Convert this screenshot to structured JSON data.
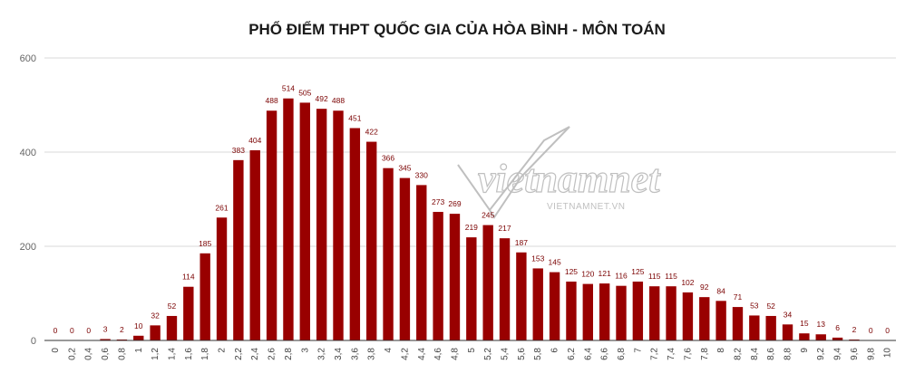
{
  "chart_data": {
    "type": "bar",
    "title": "PHỔ ĐIỂM THPT QUỐC GIA CỦA HÒA BÌNH - MÔN TOÁN",
    "xlabel": "",
    "ylabel": "",
    "ylim": [
      0,
      600
    ],
    "yticks": [
      0,
      200,
      400,
      600
    ],
    "grid": true,
    "legend": "none",
    "bar_color": "#990000",
    "label_color": "#7a0000",
    "categories": [
      "0",
      "0,2",
      "0,4",
      "0,6",
      "0,8",
      "1",
      "1,2",
      "1,4",
      "1,6",
      "1,8",
      "2",
      "2,2",
      "2,4",
      "2,6",
      "2,8",
      "3",
      "3,2",
      "3,4",
      "3,6",
      "3,8",
      "4",
      "4,2",
      "4,4",
      "4,6",
      "4,8",
      "5",
      "5,2",
      "5,4",
      "5,6",
      "5,8",
      "6",
      "6,2",
      "6,4",
      "6,6",
      "6,8",
      "7",
      "7,2",
      "7,4",
      "7,6",
      "7,8",
      "8",
      "8,2",
      "8,4",
      "8,6",
      "8,8",
      "9",
      "9,2",
      "9,4",
      "9,6",
      "9,8",
      "10"
    ],
    "values": [
      0,
      0,
      0,
      3,
      2,
      10,
      32,
      52,
      114,
      185,
      261,
      383,
      404,
      488,
      514,
      505,
      492,
      488,
      451,
      422,
      366,
      345,
      330,
      273,
      269,
      219,
      245,
      217,
      187,
      153,
      145,
      125,
      120,
      121,
      116,
      125,
      115,
      115,
      102,
      92,
      84,
      71,
      53,
      52,
      34,
      15,
      13,
      6,
      2,
      0,
      0
    ]
  },
  "watermark": {
    "text": "vietnamnet",
    "sub": "VIETNAMNET.VN"
  }
}
